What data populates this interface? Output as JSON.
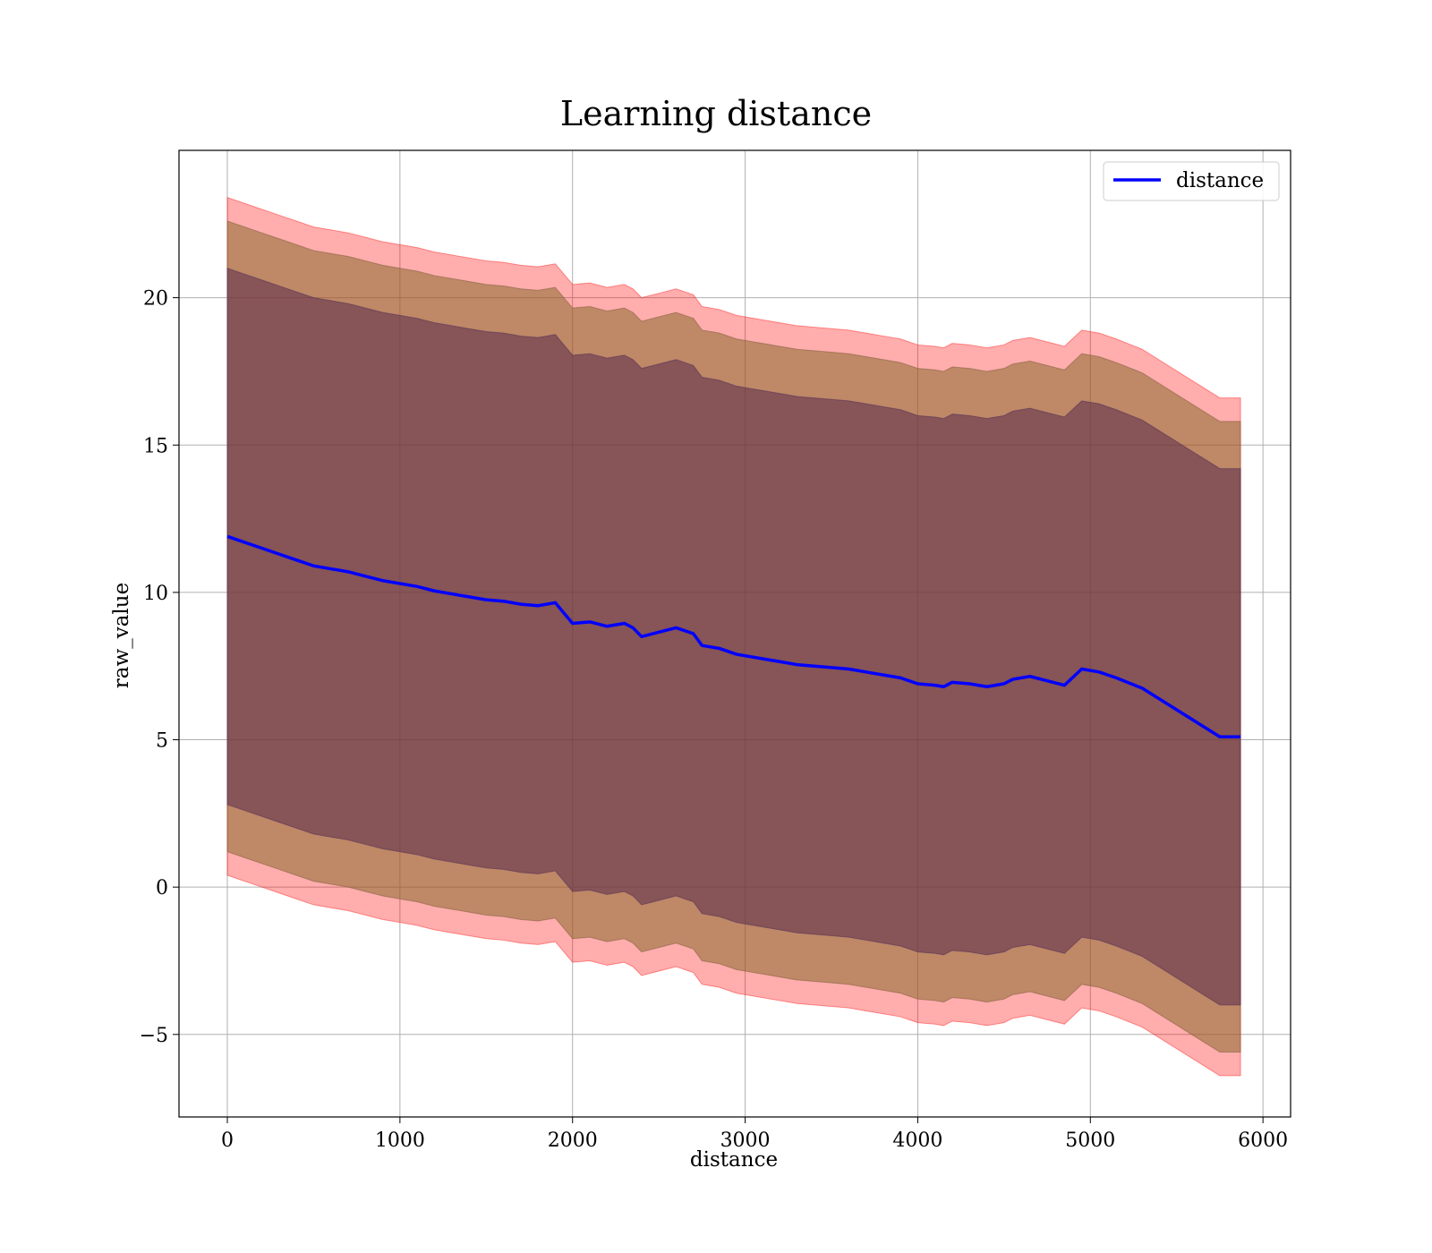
{
  "chart_data": {
    "type": "line",
    "title": "Learning distance",
    "xlabel": "distance",
    "ylabel": "raw_value",
    "xlim": [
      -280,
      6160
    ],
    "ylim": [
      -7.8,
      25.0
    ],
    "xticks": [
      0,
      1000,
      2000,
      3000,
      4000,
      5000,
      6000
    ],
    "xtick_labels": [
      "0",
      "1000",
      "2000",
      "3000",
      "4000",
      "5000",
      "6000"
    ],
    "yticks": [
      -5,
      0,
      5,
      10,
      15,
      20
    ],
    "ytick_labels": [
      "−5",
      "0",
      "5",
      "10",
      "15",
      "20"
    ],
    "grid": true,
    "legend_position": "top-right",
    "legend": [
      "distance"
    ],
    "colors": {
      "line": "#0000ff",
      "band_outer": "#ff0000",
      "band_middle": "#8b6a2c",
      "band_inner": "#5a2a4a",
      "grid": "#b0b0b0"
    },
    "series": [
      {
        "name": "distance",
        "x": [
          0,
          100,
          200,
          300,
          400,
          500,
          600,
          700,
          800,
          900,
          1000,
          1100,
          1200,
          1300,
          1400,
          1500,
          1600,
          1700,
          1800,
          1900,
          1950,
          2000,
          2100,
          2200,
          2300,
          2350,
          2400,
          2500,
          2600,
          2700,
          2750,
          2850,
          2950,
          3000,
          3100,
          3200,
          3300,
          3400,
          3500,
          3600,
          3700,
          3800,
          3900,
          4000,
          4100,
          4150,
          4200,
          4300,
          4400,
          4500,
          4550,
          4650,
          4750,
          4850,
          4950,
          5050,
          5150,
          5300,
          5450,
          5600,
          5750,
          5870
        ],
        "y": [
          11.9,
          11.7,
          11.5,
          11.3,
          11.1,
          10.9,
          10.8,
          10.7,
          10.55,
          10.4,
          10.3,
          10.2,
          10.05,
          9.95,
          9.85,
          9.75,
          9.7,
          9.6,
          9.55,
          9.65,
          9.3,
          8.95,
          9.0,
          8.85,
          8.95,
          8.8,
          8.5,
          8.65,
          8.8,
          8.6,
          8.2,
          8.1,
          7.9,
          7.85,
          7.75,
          7.65,
          7.55,
          7.5,
          7.45,
          7.4,
          7.3,
          7.2,
          7.1,
          6.9,
          6.85,
          6.8,
          6.95,
          6.9,
          6.8,
          6.9,
          7.05,
          7.15,
          7.0,
          6.85,
          7.4,
          7.3,
          7.1,
          6.75,
          6.2,
          5.65,
          5.1,
          5.1
        ],
        "band_inner_halfwidth": 9.1,
        "band_middle_halfwidth": 10.7,
        "band_outer_halfwidth": 11.5
      }
    ]
  }
}
